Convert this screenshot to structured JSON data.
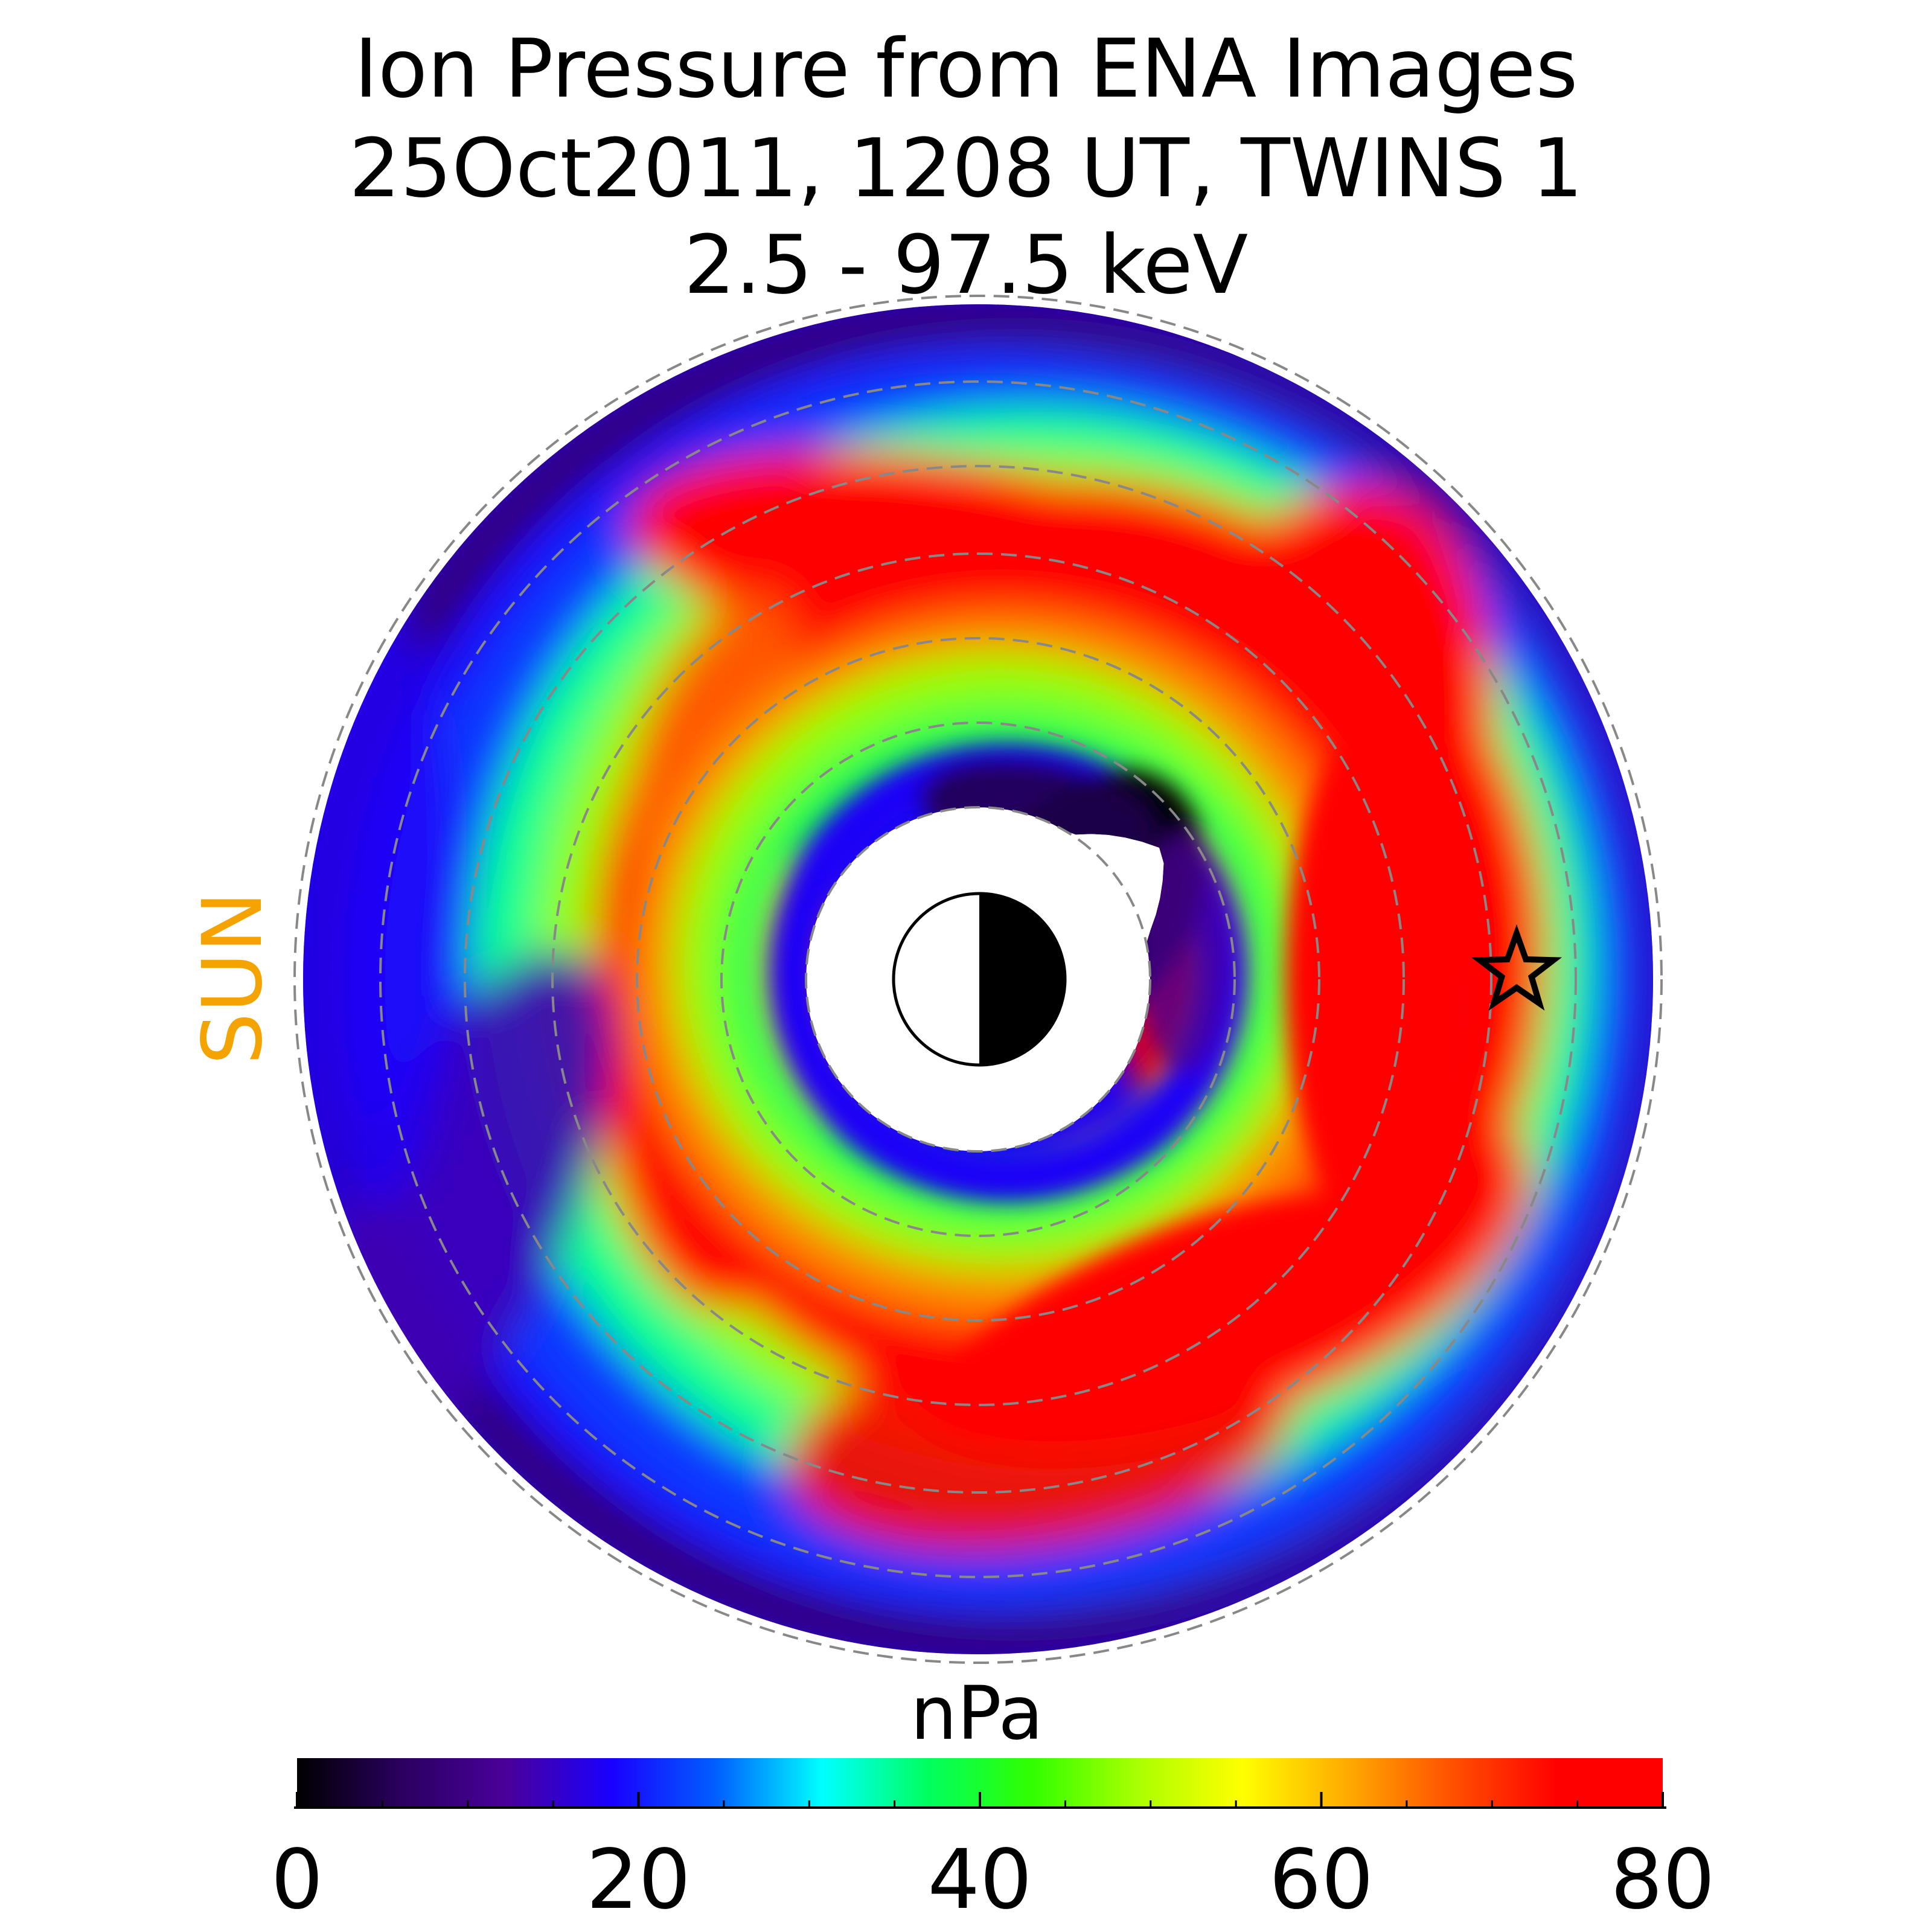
{
  "chart_data": {
    "type": "heatmap",
    "projection": "polar equatorial plane, dusk-dawn view",
    "title": [
      "Ion Pressure from  ENA Images",
      "25Oct2011, 1208 UT,  TWINS 1",
      "2.5 - 97.5 keV"
    ],
    "sun_label": "SUN",
    "colorbar": {
      "label": "nPa",
      "range": [
        0,
        80
      ],
      "ticks": [
        0,
        20,
        40,
        60,
        80
      ],
      "colormap": [
        "#000000",
        "#2a0060",
        "#4a009a",
        "#1a00ff",
        "#0060ff",
        "#00ffff",
        "#00ff60",
        "#30ff00",
        "#aaff00",
        "#ffff00",
        "#ffaa00",
        "#ff5000",
        "#ff0000",
        "#ff0000"
      ]
    },
    "grid": "dashed circles",
    "spacecraft_marker": "star",
    "earth_symbol": "half-lit disk, day side left",
    "pressure_features": [
      {
        "name": "outer ring",
        "value_nPa": 18
      },
      {
        "name": "main ring peak (dusk-midnight)",
        "value_nPa": 80
      },
      {
        "name": "inner ring",
        "value_nPa": 40
      },
      {
        "name": "inner dark region",
        "value_nPa": 0
      }
    ]
  },
  "colors": {
    "sun": "#f5a300",
    "grid": "#888888"
  }
}
